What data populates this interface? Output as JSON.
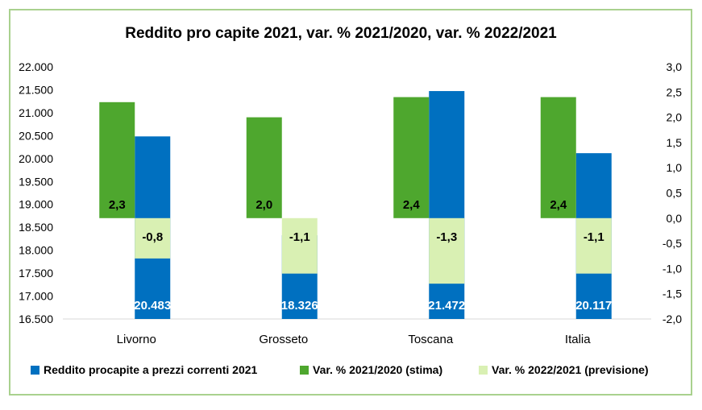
{
  "chart_data": {
    "type": "bar",
    "title": "Reddito pro capite 2021, var. % 2021/2020, var. % 2022/2021",
    "categories": [
      "Livorno",
      "Grosseto",
      "Toscana",
      "Italia"
    ],
    "left_axis": {
      "ylim": [
        16500,
        22000
      ],
      "ticks": [
        16500,
        17000,
        17500,
        18000,
        18500,
        19000,
        19500,
        20000,
        20500,
        21000,
        21500,
        22000
      ],
      "tick_labels": [
        "16.500",
        "17.000",
        "17.500",
        "18.000",
        "18.500",
        "19.000",
        "19.500",
        "20.000",
        "20.500",
        "21.000",
        "21.500",
        "22.000"
      ]
    },
    "right_axis": {
      "ylim": [
        -2.0,
        3.0
      ],
      "ticks": [
        -2.0,
        -1.5,
        -1.0,
        -0.5,
        0.0,
        0.5,
        1.0,
        1.5,
        2.0,
        2.5,
        3.0
      ],
      "tick_labels": [
        "-2,0",
        "-1,5",
        "-1,0",
        "-0,5",
        "0,0",
        "0,5",
        "1,0",
        "1,5",
        "2,0",
        "2,5",
        "3,0"
      ]
    },
    "series": [
      {
        "name": "Reddito procapite a prezzi correnti 2021",
        "axis": "left",
        "color": "#0070c0",
        "values": [
          20483,
          18326,
          21472,
          20117
        ],
        "labels": [
          "20.483",
          "18.326",
          "21.472",
          "20.117"
        ]
      },
      {
        "name": "Var. % 2021/2020 (stima)",
        "axis": "right",
        "color": "#4ea72e",
        "values": [
          2.3,
          2.0,
          2.4,
          2.4
        ],
        "labels": [
          "2,3",
          "2,0",
          "2,4",
          "2,4"
        ]
      },
      {
        "name": "Var. % 2022/2021 (previsione)",
        "axis": "right",
        "color": "#d9f0b3",
        "values": [
          -0.8,
          -1.1,
          -1.3,
          -1.1
        ],
        "labels": [
          "-0,8",
          "-1,1",
          "-1,3",
          "-1,1"
        ]
      }
    ],
    "legend": "bottom",
    "grid": false
  }
}
